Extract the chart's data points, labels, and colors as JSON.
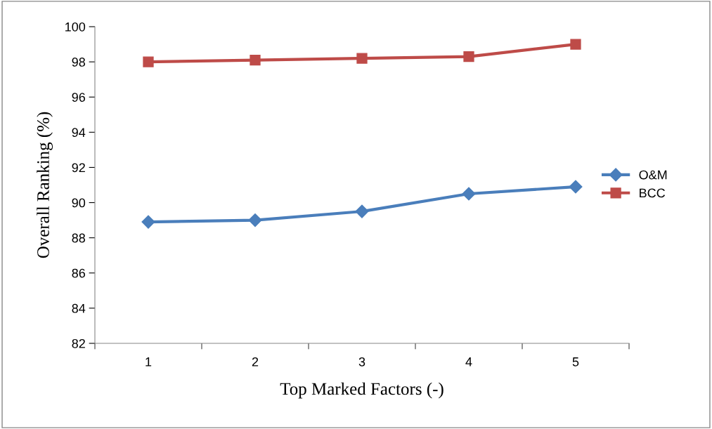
{
  "chart_data": {
    "type": "line",
    "xlabel": "Top Marked Factors (-)",
    "ylabel": "Overall Ranking (%)",
    "categories": [
      "1",
      "2",
      "3",
      "4",
      "5"
    ],
    "series": [
      {
        "name": "O&M",
        "color": "#4a7ebb",
        "marker": "diamond",
        "values": [
          88.9,
          89.0,
          89.5,
          90.5,
          90.9
        ]
      },
      {
        "name": "BCC",
        "color": "#be4b48",
        "marker": "square",
        "values": [
          98.0,
          98.1,
          98.2,
          98.3,
          99.0
        ]
      }
    ],
    "ylim": [
      82,
      100
    ],
    "yticks": [
      82,
      84,
      86,
      88,
      90,
      92,
      94,
      96,
      98,
      100
    ],
    "grid": false,
    "legend": "right",
    "line_style": "solid"
  }
}
